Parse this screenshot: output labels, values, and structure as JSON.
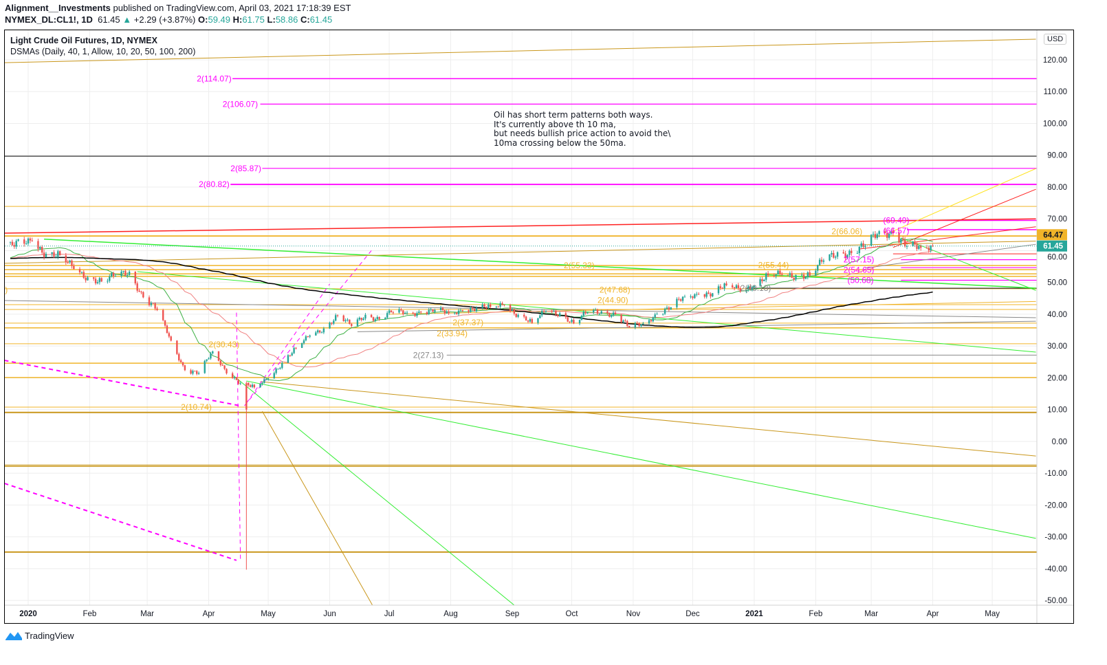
{
  "header": {
    "author": "Alignment__Investments",
    "published": "published on TradingView.com, April 03, 2021 17:18:39 EST",
    "symbol": "NYMEX_DL:CL1!, 1D",
    "last": "61.45",
    "change": "+2.29 (+3.87%)",
    "open_label": "O:",
    "open": "59.49",
    "high_label": "H:",
    "high": "61.75",
    "low_label": "L:",
    "low": "58.86",
    "close_label": "C:",
    "close": "61.45"
  },
  "legend": {
    "title": "Light Crude Oil Futures, 1D, NYMEX",
    "indicator": "DSMAs (Daily, 40, 1, Allow, 10, 20, 50, 100, 200)"
  },
  "note": "Oil has short term patterns both ways.\nIt's currently above th 10 ma,\nbut needs bullish price action to avoid the\\\n10ma crossing below the 50ma.",
  "price_axis": {
    "currency": "USD",
    "last_price_tag": "61.45",
    "level_tag": "64.47"
  },
  "brand": {
    "name": "TradingView"
  },
  "colors": {
    "up": "#26a69a",
    "down": "#ef5350",
    "ma_fast": "#3cb043",
    "ma_mid": "#f08080",
    "ma_slow": "#000000",
    "magenta": "#ff00ff",
    "orange": "#f0b429",
    "goldenrod": "#c9961a",
    "green": "#33ee33",
    "red": "#ff2020",
    "yellow": "#ffe21a",
    "gray": "#888888"
  },
  "chart_data": {
    "type": "candlestick",
    "title": "Light Crude Oil Futures, 1D, NYMEX",
    "ylim": [
      -52,
      128
    ],
    "y_ticks": [
      "120.00",
      "110.00",
      "100.00",
      "90.00",
      "80.00",
      "70.00",
      "60.00",
      "50.00",
      "40.00",
      "30.00",
      "20.00",
      "10.00",
      "0.00",
      "-10.00",
      "-20.00",
      "-30.00",
      "-40.00",
      "-50.00"
    ],
    "x_ticks": [
      {
        "label": "2020",
        "date": "2020-01-01",
        "bold": true
      },
      {
        "label": "Feb",
        "date": "2020-02-01"
      },
      {
        "label": "Mar",
        "date": "2020-03-01"
      },
      {
        "label": "Apr",
        "date": "2020-04-01"
      },
      {
        "label": "May",
        "date": "2020-05-01"
      },
      {
        "label": "Jun",
        "date": "2020-06-01"
      },
      {
        "label": "Jul",
        "date": "2020-07-01"
      },
      {
        "label": "Aug",
        "date": "2020-08-01"
      },
      {
        "label": "Sep",
        "date": "2020-09-01"
      },
      {
        "label": "Oct",
        "date": "2020-10-01"
      },
      {
        "label": "Nov",
        "date": "2020-11-01"
      },
      {
        "label": "Dec",
        "date": "2020-12-01"
      },
      {
        "label": "2021",
        "date": "2021-01-01",
        "bold": true
      },
      {
        "label": "Feb",
        "date": "2021-02-01"
      },
      {
        "label": "Mar",
        "date": "2021-03-01"
      },
      {
        "label": "Apr",
        "date": "2021-04-01"
      },
      {
        "label": "May",
        "date": "2021-05-01"
      }
    ],
    "weekly_closes": [
      [
        "2019-12-20",
        61.0
      ],
      [
        "2020-01-03",
        63.0
      ],
      [
        "2020-01-10",
        59.0
      ],
      [
        "2020-01-17",
        58.5
      ],
      [
        "2020-01-24",
        54.2
      ],
      [
        "2020-01-31",
        51.6
      ],
      [
        "2020-02-07",
        50.3
      ],
      [
        "2020-02-14",
        52.0
      ],
      [
        "2020-02-21",
        53.4
      ],
      [
        "2020-02-28",
        45.3
      ],
      [
        "2020-03-06",
        41.3
      ],
      [
        "2020-03-13",
        31.7
      ],
      [
        "2020-03-20",
        22.4
      ],
      [
        "2020-03-27",
        21.5
      ],
      [
        "2020-04-03",
        28.3
      ],
      [
        "2020-04-09",
        22.8
      ],
      [
        "2020-04-17",
        18.3
      ],
      [
        "2020-04-24",
        17.0
      ],
      [
        "2020-05-01",
        19.8
      ],
      [
        "2020-05-08",
        24.7
      ],
      [
        "2020-05-15",
        29.4
      ],
      [
        "2020-05-22",
        33.3
      ],
      [
        "2020-05-29",
        35.5
      ],
      [
        "2020-06-05",
        39.6
      ],
      [
        "2020-06-12",
        36.3
      ],
      [
        "2020-06-19",
        39.8
      ],
      [
        "2020-06-26",
        38.5
      ],
      [
        "2020-07-02",
        40.6
      ],
      [
        "2020-07-10",
        40.5
      ],
      [
        "2020-07-17",
        40.6
      ],
      [
        "2020-07-24",
        41.3
      ],
      [
        "2020-07-31",
        40.3
      ],
      [
        "2020-08-07",
        41.2
      ],
      [
        "2020-08-14",
        42.0
      ],
      [
        "2020-08-21",
        42.3
      ],
      [
        "2020-08-28",
        42.9
      ],
      [
        "2020-09-04",
        39.8
      ],
      [
        "2020-09-11",
        37.3
      ],
      [
        "2020-09-18",
        41.1
      ],
      [
        "2020-09-25",
        40.3
      ],
      [
        "2020-10-02",
        37.1
      ],
      [
        "2020-10-09",
        40.6
      ],
      [
        "2020-10-16",
        40.9
      ],
      [
        "2020-10-23",
        39.9
      ],
      [
        "2020-10-30",
        35.8
      ],
      [
        "2020-11-06",
        37.1
      ],
      [
        "2020-11-13",
        40.1
      ],
      [
        "2020-11-20",
        42.2
      ],
      [
        "2020-11-27",
        45.5
      ],
      [
        "2020-12-04",
        46.3
      ],
      [
        "2020-12-11",
        46.6
      ],
      [
        "2020-12-18",
        49.1
      ],
      [
        "2020-12-24",
        48.2
      ],
      [
        "2020-12-31",
        48.5
      ],
      [
        "2021-01-08",
        52.2
      ],
      [
        "2021-01-15",
        52.4
      ],
      [
        "2021-01-22",
        52.3
      ],
      [
        "2021-01-29",
        52.2
      ],
      [
        "2021-02-05",
        56.9
      ],
      [
        "2021-02-12",
        59.5
      ],
      [
        "2021-02-19",
        59.2
      ],
      [
        "2021-02-26",
        61.5
      ],
      [
        "2021-03-05",
        66.1
      ],
      [
        "2021-03-12",
        65.6
      ],
      [
        "2021-03-19",
        61.4
      ],
      [
        "2021-03-26",
        60.9
      ],
      [
        "2021-04-01",
        61.45
      ]
    ],
    "extremes": [
      {
        "date": "2020-04-20",
        "low": -40.32
      }
    ],
    "moving_averages": [
      {
        "period": 20,
        "color_key": "ma_fast"
      },
      {
        "period": 50,
        "color_key": "ma_mid"
      },
      {
        "period": 200,
        "color_key": "ma_slow"
      }
    ],
    "horizontal_levels": [
      {
        "price": 114.07,
        "from": "2020-04-13",
        "color": "magenta",
        "w": 1.5
      },
      {
        "price": 106.07,
        "from": "2020-04-27",
        "color": "magenta",
        "w": 1.2
      },
      {
        "price": 89.7,
        "color": "#333333",
        "w": 1.2
      },
      {
        "price": 85.87,
        "from": "2020-04-28",
        "color": "magenta",
        "w": 1.2
      },
      {
        "price": 80.82,
        "from": "2020-04-12",
        "color": "magenta",
        "w": 1.8
      },
      {
        "price": 73.9,
        "color": "orange",
        "w": 1
      },
      {
        "price": 64.6,
        "color": "orange",
        "w": 1.8
      },
      {
        "price": 55.3,
        "color": "orange",
        "w": 1.5
      },
      {
        "price": 54.0,
        "color": "orange",
        "w": 1.5
      },
      {
        "price": 52.7,
        "color": "orange",
        "w": 1.5
      },
      {
        "price": 51.9,
        "color": "orange",
        "w": 1.5
      },
      {
        "price": 48.0,
        "color": "orange",
        "w": 1
      },
      {
        "price": 43.0,
        "color": "orange",
        "w": 1
      },
      {
        "price": 41.5,
        "color": "orange",
        "w": 1
      },
      {
        "price": 37.2,
        "color": "orange",
        "w": 1
      },
      {
        "price": 35.7,
        "color": "orange",
        "w": 1.5
      },
      {
        "price": 30.7,
        "color": "orange",
        "w": 1
      },
      {
        "price": 24.6,
        "color": "orange",
        "w": 1.5
      },
      {
        "price": 20.1,
        "color": "orange",
        "w": 1.5
      },
      {
        "price": 10.8,
        "color": "orange",
        "w": 1
      },
      {
        "price": 9.1,
        "color": "goldenrod",
        "w": 2
      },
      {
        "price": -7.4,
        "color": "goldenrod",
        "w": 1
      },
      {
        "price": -7.8,
        "color": "goldenrod",
        "w": 1.5
      },
      {
        "price": -34.8,
        "color": "goldenrod",
        "w": 2
      },
      {
        "price": 27.13,
        "from": "2020-07-30",
        "color": "gray",
        "w": 1
      },
      {
        "price": 48.18,
        "from": "2020-12-28",
        "color": "#333333",
        "w": 1.2
      },
      {
        "price": 69.49,
        "from": "2021-03-19",
        "color": "magenta",
        "w": 1.5
      },
      {
        "price": 66.57,
        "from": "2021-03-19",
        "color": "magenta",
        "w": 1.5
      },
      {
        "price": 57.15,
        "from": "2021-03-16",
        "color": "magenta",
        "w": 1.2
      },
      {
        "price": 54.65,
        "from": "2021-03-16",
        "color": "magenta",
        "w": 1.2
      },
      {
        "price": 50.68,
        "from": "2021-03-16",
        "color": "magenta",
        "w": 1.2
      },
      {
        "price": 59.0,
        "from": "2021-03-12",
        "color": "red",
        "w": 1
      }
    ],
    "trend_lines": [
      {
        "d1": "2019-12-20",
        "p1": 119.1,
        "d2": "2021-05-23",
        "p2": 126.5,
        "color": "goldenrod"
      },
      {
        "d1": "2019-12-20",
        "p1": 65.5,
        "d2": "2021-05-23",
        "p2": 70.0,
        "color": "red",
        "w": 1.5
      },
      {
        "d1": "2020-01-09",
        "p1": 63.6,
        "d2": "2021-05-23",
        "p2": 48.2,
        "color": "green",
        "w": 1.5
      },
      {
        "d1": "2020-02-25",
        "p1": 53.4,
        "d2": "2021-05-23",
        "p2": 28.1,
        "color": "green"
      },
      {
        "d1": "2020-04-13",
        "p1": 20.9,
        "d2": "2020-09-03",
        "p2": -52,
        "color": "green"
      },
      {
        "d1": "2020-04-20",
        "p1": 19.0,
        "d2": "2021-05-23",
        "p2": -30.5,
        "color": "green"
      },
      {
        "d1": "2020-04-28",
        "p1": 9.5,
        "d2": "2020-06-23",
        "p2": -52,
        "color": "goldenrod"
      },
      {
        "d1": "2020-04-27",
        "p1": 18.8,
        "d2": "2021-05-23",
        "p2": -4.6,
        "color": "goldenrod"
      },
      {
        "d1": "2019-12-20",
        "p1": 25.5,
        "d2": "2020-04-17",
        "p2": 11.2,
        "color": "magenta",
        "dash": true,
        "w": 2
      },
      {
        "d1": "2019-12-20",
        "p1": -13.2,
        "d2": "2020-04-15",
        "p2": -37.4,
        "color": "magenta",
        "dash": true,
        "w": 2
      },
      {
        "d1": "2020-04-19",
        "p1": 11.2,
        "d2": "2020-06-22",
        "p2": 60.0,
        "color": "magenta",
        "dash": true
      },
      {
        "d1": "2020-04-15",
        "p1": 40.5,
        "d2": "2020-04-17",
        "p2": -37.0,
        "color": "magenta",
        "dash": true
      },
      {
        "d1": "2020-04-20",
        "p1": 12.0,
        "d2": "2020-06-01",
        "p2": 49.5,
        "color": "magenta",
        "dash": true
      },
      {
        "d1": "2019-12-20",
        "p1": 44.3,
        "d2": "2021-05-23",
        "p2": 38.9,
        "color": "gray"
      },
      {
        "d1": "2020-06-15",
        "p1": 34.5,
        "d2": "2021-05-23",
        "p2": 37.8,
        "color": "gray"
      },
      {
        "d1": "2021-02-26",
        "p1": 54.5,
        "d2": "2021-05-23",
        "p2": 62.0,
        "color": "gray"
      },
      {
        "d1": "2021-03-09",
        "p1": 65.3,
        "d2": "2021-05-23",
        "p2": 85.8,
        "color": "yellow"
      },
      {
        "d1": "2021-03-12",
        "p1": 61.0,
        "d2": "2021-05-23",
        "p2": 79.3,
        "color": "red"
      },
      {
        "d1": "2021-02-23",
        "p1": 60.5,
        "d2": "2021-05-23",
        "p2": 67.5,
        "color": "red"
      },
      {
        "d1": "2021-03-16",
        "p1": 64.0,
        "d2": "2021-05-23",
        "p2": 47.5,
        "color": "green"
      },
      {
        "d1": "2020-07-01",
        "p1": 40.0,
        "d2": "2021-05-23",
        "p2": 44.0,
        "color": "orange"
      },
      {
        "d1": "2019-12-20",
        "p1": 56.0,
        "d2": "2021-05-23",
        "p2": 63.0,
        "color": "goldenrod"
      }
    ],
    "labels": [
      {
        "text": "2(114.07)",
        "date": "2020-03-26",
        "price": 114.07,
        "color": "magenta"
      },
      {
        "text": "2(106.07)",
        "date": "2020-04-08",
        "price": 106.07,
        "color": "magenta"
      },
      {
        "text": "2(85.87)",
        "date": "2020-04-12",
        "price": 85.87,
        "color": "magenta"
      },
      {
        "text": "2(80.82)",
        "date": "2020-03-27",
        "price": 80.82,
        "color": "magenta"
      },
      {
        "text": "2(55.33)",
        "date": "2020-09-27",
        "price": 55.33,
        "color": "orange"
      },
      {
        "text": "2(55.44)",
        "date": "2021-01-03",
        "price": 55.44,
        "color": "orange"
      },
      {
        "text": "2(47.68)",
        "date": "2020-10-15",
        "price": 47.68,
        "color": "orange"
      },
      {
        "text": "2(44.90)",
        "date": "2020-10-14",
        "price": 44.9,
        "color": "orange"
      },
      {
        "text": "2(37.37)",
        "date": "2020-08-02",
        "price": 37.37,
        "color": "orange"
      },
      {
        "text": "2(33.94)",
        "date": "2020-07-25",
        "price": 33.94,
        "color": "orange"
      },
      {
        "text": "2(30.43)",
        "date": "2020-04-01",
        "price": 30.43,
        "color": "orange"
      },
      {
        "text": "2(10.74)",
        "date": "2020-03-18",
        "price": 10.74,
        "color": "orange"
      },
      {
        "text": "2(66.06)",
        "date": "2021-02-09",
        "price": 66.06,
        "color": "orange"
      },
      {
        "text": "7)",
        "date": "2019-12-18",
        "price": 47.7,
        "color": "orange"
      },
      {
        "text": "2(27.13)",
        "date": "2020-07-13",
        "price": 27.13,
        "color": "gray"
      },
      {
        "text": "2(48.18)",
        "date": "2020-12-25",
        "price": 48.18,
        "color": "gray"
      },
      {
        "text": "(69.49)",
        "date": "2021-03-07",
        "price": 69.49,
        "color": "magenta"
      },
      {
        "text": "(66.57)",
        "date": "2021-03-07",
        "price": 66.57,
        "color": "magenta"
      },
      {
        "text": "2(57.15)",
        "date": "2021-02-15",
        "price": 57.15,
        "color": "magenta"
      },
      {
        "text": "2(54.65)",
        "date": "2021-02-15",
        "price": 54.65,
        "color": "magenta"
      },
      {
        "text": "(50.68)",
        "date": "2021-02-17",
        "price": 50.68,
        "color": "magenta"
      }
    ]
  }
}
